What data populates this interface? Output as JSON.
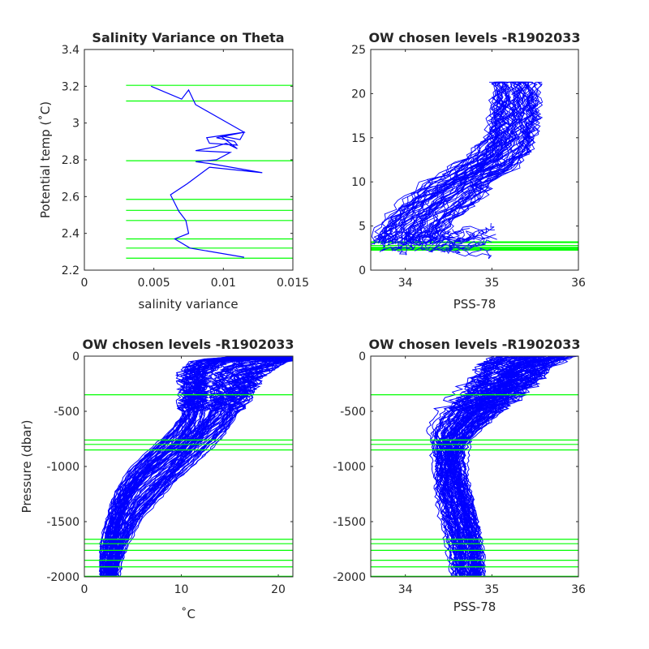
{
  "chart_data": [
    {
      "type": "line",
      "title": "Salinity Variance on Theta",
      "xlabel": "salinity variance",
      "ylabel": "Potential temp (˚C)",
      "xlim": [
        0,
        0.015
      ],
      "ylim": [
        2.2,
        3.4
      ],
      "xticks": [
        "0",
        "0.005",
        "0.01",
        "0.015"
      ],
      "yticks": [
        "2.2",
        "2.4",
        "2.6",
        "2.8",
        "3",
        "3.2",
        "3.4"
      ],
      "grid": false,
      "series": [
        {
          "color": "#0000ff",
          "x": [
            0.0115,
            0.0076,
            0.0065,
            0.0075,
            0.0073,
            0.0068,
            0.0062,
            0.0074,
            0.009,
            0.0128,
            0.009,
            0.008,
            0.0095,
            0.0105,
            0.008,
            0.0094,
            0.0102,
            0.011,
            0.0098,
            0.0112,
            0.0115,
            0.0095,
            0.0108,
            0.011,
            0.009,
            0.0088,
            0.0115,
            0.008,
            0.0075,
            0.007,
            0.0048
          ],
          "y": [
            2.27,
            2.32,
            2.37,
            2.4,
            2.47,
            2.52,
            2.61,
            2.67,
            2.76,
            2.73,
            2.78,
            2.79,
            2.8,
            2.84,
            2.85,
            2.87,
            2.89,
            2.86,
            2.93,
            2.91,
            2.95,
            2.92,
            2.9,
            2.88,
            2.89,
            2.92,
            2.95,
            3.1,
            3.18,
            3.13,
            3.2
          ]
        }
      ],
      "reference_lines": {
        "orientation": "horizontal",
        "color": "#00ff00",
        "x_start": 0.003,
        "values": [
          2.265,
          2.32,
          2.37,
          2.47,
          2.525,
          2.585,
          2.795,
          3.12,
          3.205
        ]
      }
    },
    {
      "type": "line",
      "title": "OW chosen levels -R1902033",
      "xlabel": "PSS-78",
      "ylabel": "",
      "xlim": [
        33.6,
        36
      ],
      "ylim": [
        0,
        25
      ],
      "xticks": [
        "34",
        "35",
        "36"
      ],
      "yticks": [
        "0",
        "5",
        "10",
        "15",
        "20",
        "25"
      ],
      "grid": false,
      "series": [
        {
          "color": "#0000ff",
          "x": [
            34.0,
            34.05,
            34.15,
            34.3,
            34.45,
            34.55,
            34.62,
            34.7,
            34.8,
            34.95,
            35.05,
            35.15,
            35.22,
            35.25,
            35.28,
            35.35,
            35.45,
            35.5,
            35.55,
            35.6
          ],
          "y": [
            2.0,
            3.0,
            4.5,
            6.0,
            7.3,
            8.2,
            8.8,
            9.5,
            10.2,
            11.0,
            12.0,
            13.0,
            14.5,
            16.0,
            17.5,
            18.0,
            17.2,
            16.5,
            17.0,
            17.5
          ]
        }
      ],
      "reference_lines": {
        "orientation": "horizontal",
        "color": "#00ff00",
        "values": [
          2.265,
          2.32,
          2.37,
          2.47,
          2.525,
          2.585,
          2.795,
          3.12,
          3.205
        ]
      }
    },
    {
      "type": "line",
      "title": "OW chosen levels -R1902033",
      "xlabel": "˚C",
      "ylabel": "Pressure (dbar)",
      "xlim": [
        0,
        21.5
      ],
      "ylim": [
        -2000,
        0
      ],
      "xticks": [
        "0",
        "10",
        "20"
      ],
      "yticks": [
        "-2000",
        "-1500",
        "-1000",
        "-500",
        "0"
      ],
      "grid": false,
      "series": [
        {
          "color": "#0000ff",
          "x": [
            20.5,
            16.0,
            14.0,
            13.5,
            12.5,
            10.5,
            8.0,
            5.5,
            4.0,
            3.2,
            2.7,
            2.4,
            2.2
          ],
          "y": [
            0,
            -40,
            -150,
            -350,
            -600,
            -800,
            -1000,
            -1200,
            -1400,
            -1600,
            -1800,
            -1900,
            -2000
          ]
        }
      ],
      "reference_lines": {
        "orientation": "horizontal",
        "color": "#00ff00",
        "values": [
          -350,
          -760,
          -800,
          -850,
          -1660,
          -1700,
          -1760,
          -1850,
          -1910,
          -1995
        ]
      }
    },
    {
      "type": "line",
      "title": "OW chosen levels -R1902033",
      "xlabel": "PSS-78",
      "ylabel": "",
      "xlim": [
        33.6,
        36
      ],
      "ylim": [
        -2000,
        0
      ],
      "xticks": [
        "34",
        "35",
        "36"
      ],
      "yticks": [
        "-2000",
        "-1500",
        "-1000",
        "-500",
        "0"
      ],
      "grid": false,
      "series": [
        {
          "color": "#0000ff",
          "x": [
            35.5,
            35.3,
            35.2,
            35.0,
            34.8,
            34.6,
            34.5,
            34.5,
            34.55,
            34.62,
            34.68,
            34.72,
            34.75
          ],
          "y": [
            0,
            -80,
            -200,
            -350,
            -500,
            -650,
            -800,
            -1000,
            -1200,
            -1400,
            -1600,
            -1800,
            -2000
          ]
        }
      ],
      "reference_lines": {
        "orientation": "horizontal",
        "color": "#00ff00",
        "values": [
          -350,
          -760,
          -800,
          -850,
          -1660,
          -1700,
          -1760,
          -1850,
          -1910,
          -1995
        ]
      }
    }
  ]
}
